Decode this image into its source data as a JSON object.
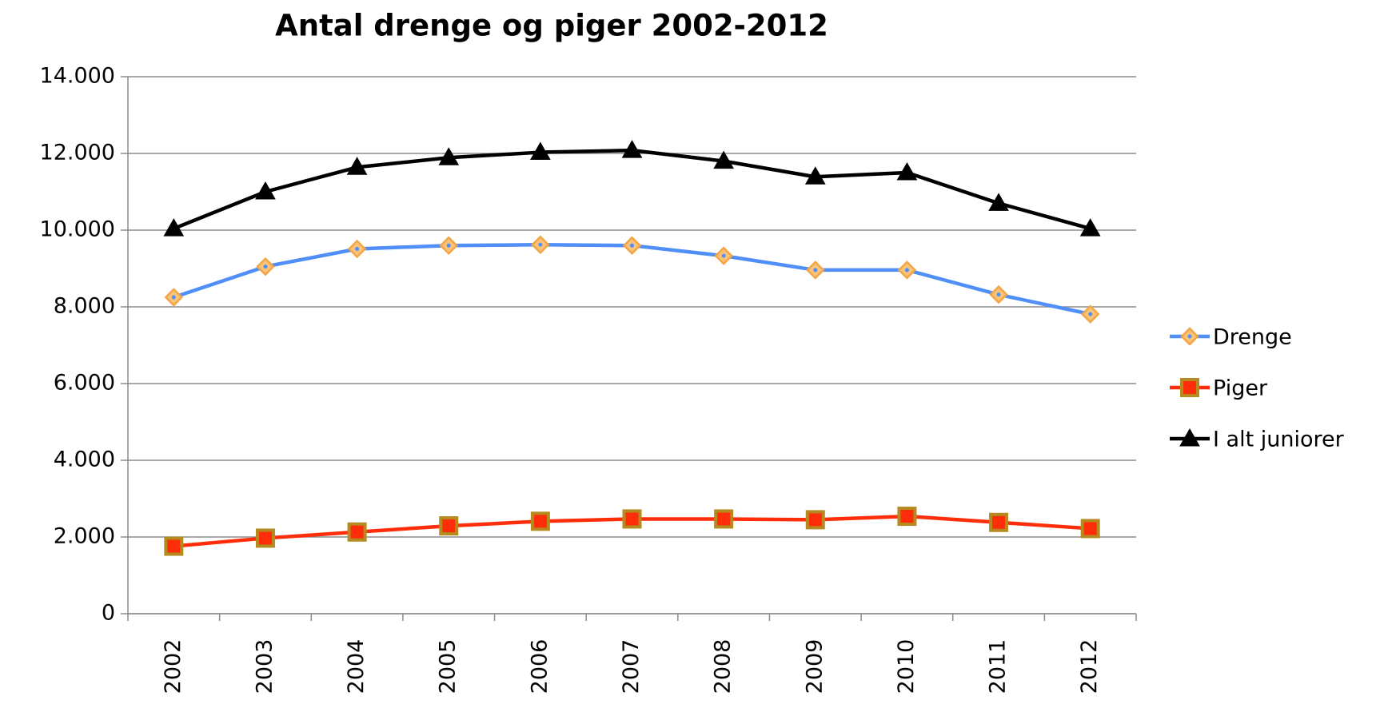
{
  "chart_data": {
    "type": "line",
    "title": "Antal drenge og piger 2002-2012",
    "categories": [
      "2002",
      "2003",
      "2004",
      "2005",
      "2006",
      "2007",
      "2008",
      "2009",
      "2010",
      "2011",
      "2012"
    ],
    "series": [
      {
        "name": "Drenge",
        "color": "#4f8ff7",
        "marker": "diamond",
        "marker_color": "#fbc27a",
        "marker_edge": "#f3a646",
        "values": [
          8250,
          9050,
          9510,
          9600,
          9620,
          9600,
          9330,
          8960,
          8960,
          8320,
          7810
        ]
      },
      {
        "name": "Piger",
        "color": "#ff2d0a",
        "marker": "square",
        "marker_color": "#ff2d0a",
        "marker_edge": "#b58a1e",
        "values": [
          1760,
          1970,
          2130,
          2290,
          2410,
          2470,
          2470,
          2450,
          2540,
          2380,
          2220
        ]
      },
      {
        "name": "I alt juniorer",
        "color": "#000000",
        "marker": "triangle",
        "marker_color": "#000000",
        "marker_edge": "#000000",
        "values": [
          10040,
          11000,
          11640,
          11890,
          12030,
          12080,
          11800,
          11390,
          11500,
          10700,
          10040
        ]
      }
    ],
    "ylim": [
      0,
      14000
    ],
    "yticks": [
      0,
      {
        "value": 2000,
        "label": "2.000"
      },
      {
        "value": 4000,
        "label": "4.000"
      },
      {
        "value": 6000,
        "label": "6.000"
      },
      {
        "value": 8000,
        "label": "8.000"
      },
      {
        "value": 10000,
        "label": "10.000"
      },
      {
        "value": 12000,
        "label": "12.000"
      },
      {
        "value": 14000,
        "label": "14.000"
      }
    ],
    "grid": true,
    "legend": "right"
  }
}
